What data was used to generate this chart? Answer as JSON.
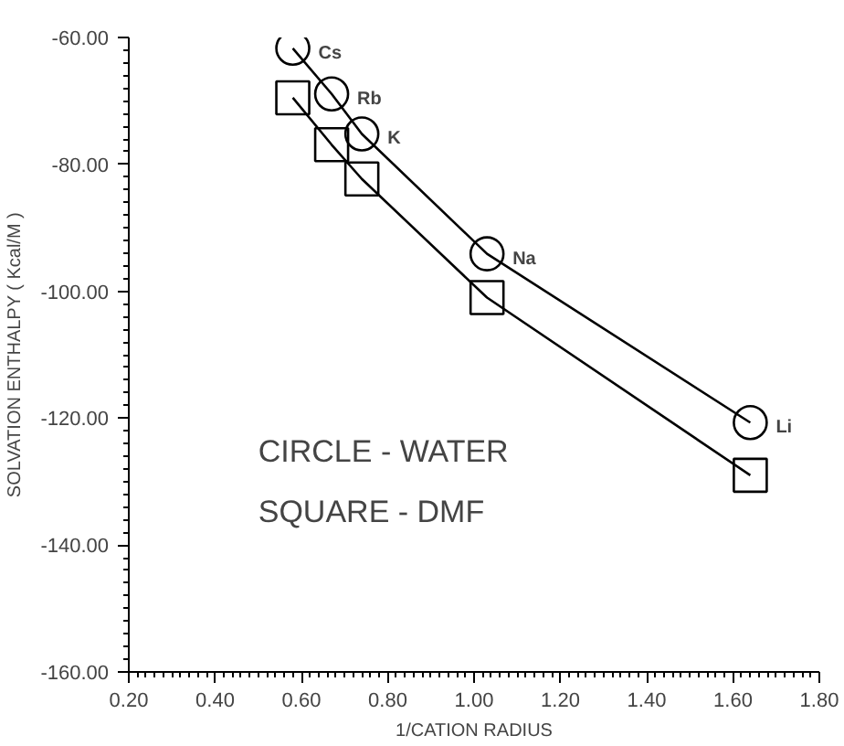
{
  "chart_data": {
    "type": "scatter",
    "xlabel": "1/CATION RADIUS",
    "ylabel": "SOLVATION ENTHALPY ( Kcal/M )",
    "xlim": [
      0.2,
      1.8
    ],
    "ylim": [
      -160,
      -60
    ],
    "xticks": [
      {
        "value": 0.2,
        "label": "0.20"
      },
      {
        "value": 0.4,
        "label": "0.40"
      },
      {
        "value": 0.6,
        "label": "0.60"
      },
      {
        "value": 0.8,
        "label": "0.80"
      },
      {
        "value": 1.0,
        "label": "1.00"
      },
      {
        "value": 1.2,
        "label": "1.20"
      },
      {
        "value": 1.4,
        "label": "1.40"
      },
      {
        "value": 1.6,
        "label": "1.60"
      },
      {
        "value": 1.8,
        "label": "1.80"
      }
    ],
    "yticks": [
      {
        "value": -60,
        "label": "-60.00"
      },
      {
        "value": -80,
        "label": "-80.00"
      },
      {
        "value": -100,
        "label": "-100.00"
      },
      {
        "value": -120,
        "label": "-120.00"
      },
      {
        "value": -140,
        "label": "-140.00"
      },
      {
        "value": -160,
        "label": "-160.00"
      }
    ],
    "grid": false,
    "series": [
      {
        "marker": "circle",
        "color": "#000000",
        "x": [
          0.58,
          0.67,
          0.74,
          1.03,
          1.64
        ],
        "values": [
          -61.7,
          -68.9,
          -75.2,
          -94.1,
          -120.7
        ]
      },
      {
        "marker": "square",
        "color": "#000000",
        "x": [
          0.58,
          0.67,
          0.74,
          1.03,
          1.64
        ],
        "values": [
          -69.5,
          -76.9,
          -82.3,
          -101.0,
          -129.0
        ]
      },
      {
        "type": "line",
        "color": "#000000",
        "x": [
          0.58,
          0.67,
          0.74,
          1.03,
          1.64
        ],
        "values": [
          -61.7,
          -68.9,
          -75.2,
          -94.1,
          -120.7
        ]
      },
      {
        "type": "line",
        "color": "#000000",
        "x": [
          0.58,
          0.67,
          0.74,
          1.03,
          1.64
        ],
        "values": [
          -69.5,
          -76.9,
          -82.3,
          -101.0,
          -129.0
        ]
      }
    ],
    "annotations": [
      {
        "text": "Cs",
        "x": 0.58,
        "y": -61.7
      },
      {
        "text": "Rb",
        "x": 0.67,
        "y": -68.9
      },
      {
        "text": "K",
        "x": 0.74,
        "y": -75.2
      },
      {
        "text": "Na",
        "x": 1.03,
        "y": -94.1
      },
      {
        "text": "Li",
        "x": 1.64,
        "y": -120.7
      },
      "CIRCLE - WATER",
      "SQUARE - DMF"
    ]
  }
}
